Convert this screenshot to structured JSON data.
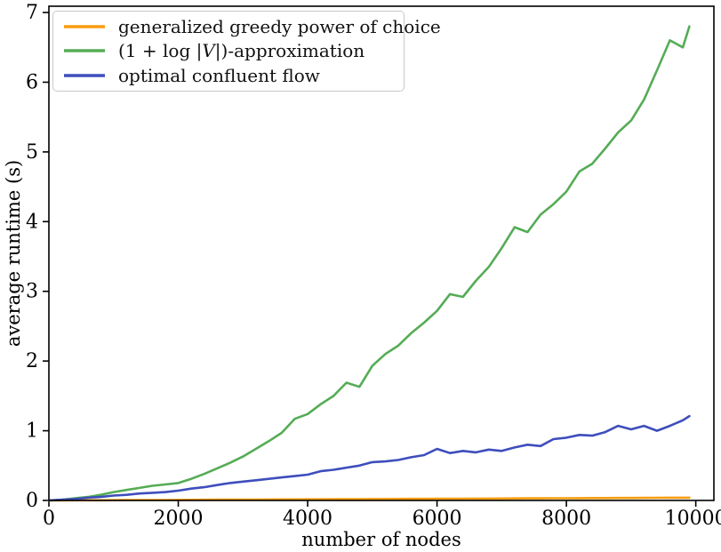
{
  "chart_data": {
    "type": "line",
    "title": "",
    "xlabel": "number of nodes",
    "ylabel": "average runtime (s)",
    "xlim": [
      0,
      10280
    ],
    "ylim": [
      0,
      7.09
    ],
    "xticks": [
      0,
      2000,
      4000,
      6000,
      8000,
      10000
    ],
    "yticks": [
      0,
      1,
      2,
      3,
      4,
      5,
      6,
      7
    ],
    "grid": false,
    "legend_position": "upper left",
    "axis_color": "#000000",
    "legend_border_color": "#c9c9c9",
    "x": [
      0,
      200,
      400,
      600,
      800,
      1000,
      1200,
      1400,
      1600,
      1800,
      2000,
      2200,
      2400,
      2600,
      2800,
      3000,
      3200,
      3400,
      3600,
      3800,
      4000,
      4200,
      4400,
      4600,
      4800,
      5000,
      5200,
      5400,
      5600,
      5800,
      6000,
      6200,
      6400,
      6600,
      6800,
      7000,
      7200,
      7400,
      7600,
      7800,
      8000,
      8200,
      8400,
      8600,
      8800,
      9000,
      9200,
      9400,
      9600,
      9800,
      9900
    ],
    "series": [
      {
        "name": "generalized greedy power of choice",
        "color": "#fa9d10",
        "values": [
          0,
          0.001,
          0.002,
          0.002,
          0.003,
          0.004,
          0.005,
          0.006,
          0.006,
          0.007,
          0.008,
          0.009,
          0.01,
          0.011,
          0.011,
          0.012,
          0.013,
          0.014,
          0.015,
          0.015,
          0.016,
          0.017,
          0.018,
          0.019,
          0.019,
          0.02,
          0.021,
          0.022,
          0.023,
          0.023,
          0.024,
          0.025,
          0.026,
          0.027,
          0.027,
          0.028,
          0.029,
          0.03,
          0.031,
          0.032,
          0.032,
          0.033,
          0.034,
          0.035,
          0.036,
          0.036,
          0.037,
          0.038,
          0.039,
          0.04,
          0.04
        ]
      },
      {
        "name": "(1 + log |V|)-approximation",
        "color": "#55ac55",
        "values": [
          0,
          0.01,
          0.03,
          0.05,
          0.08,
          0.12,
          0.15,
          0.18,
          0.21,
          0.23,
          0.25,
          0.31,
          0.38,
          0.46,
          0.54,
          0.63,
          0.74,
          0.85,
          0.97,
          1.17,
          1.24,
          1.38,
          1.5,
          1.69,
          1.63,
          1.93,
          2.1,
          2.22,
          2.4,
          2.55,
          2.72,
          2.96,
          2.92,
          3.15,
          3.35,
          3.62,
          3.92,
          3.85,
          4.1,
          4.25,
          4.43,
          4.72,
          4.83,
          5.05,
          5.28,
          5.45,
          5.75,
          6.17,
          6.6,
          6.5,
          6.8
        ]
      },
      {
        "name": "optimal confluent flow",
        "color": "#3e4ebc",
        "values": [
          0,
          0.01,
          0.02,
          0.04,
          0.05,
          0.07,
          0.08,
          0.1,
          0.11,
          0.12,
          0.14,
          0.17,
          0.19,
          0.22,
          0.25,
          0.27,
          0.29,
          0.31,
          0.33,
          0.35,
          0.37,
          0.42,
          0.44,
          0.47,
          0.5,
          0.55,
          0.56,
          0.58,
          0.62,
          0.65,
          0.74,
          0.68,
          0.71,
          0.69,
          0.73,
          0.71,
          0.76,
          0.8,
          0.78,
          0.88,
          0.9,
          0.94,
          0.93,
          0.98,
          1.07,
          1.02,
          1.07,
          1.0,
          1.07,
          1.15,
          1.21
        ]
      }
    ]
  }
}
